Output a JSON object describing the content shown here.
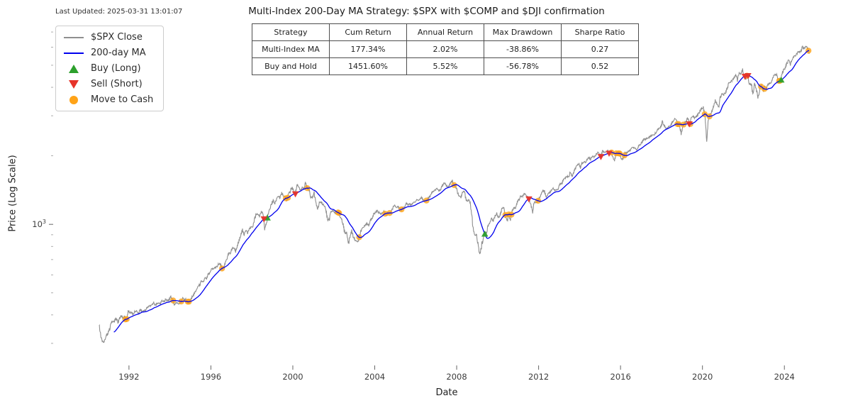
{
  "header": {
    "title": "Multi-Index 200-Day MA Strategy: $SPX with $COMP and $DJI confirmation",
    "last_updated": "Last Updated: 2025-03-31 13:01:07"
  },
  "legend": {
    "items": [
      {
        "label": "$SPX Close",
        "type": "line",
        "color": "#8f8f8f"
      },
      {
        "label": "200-day MA",
        "type": "line",
        "color": "#0000ee"
      },
      {
        "label": "Buy (Long)",
        "type": "triangle-up",
        "color": "#2ca02c"
      },
      {
        "label": "Sell (Short)",
        "type": "triangle-down",
        "color": "#e63329"
      },
      {
        "label": "Move to Cash",
        "type": "circle",
        "color": "#ffa317"
      }
    ]
  },
  "stats_table": {
    "headers": [
      "Strategy",
      "Cum Return",
      "Annual Return",
      "Max Drawdown",
      "Sharpe Ratio"
    ],
    "rows": [
      [
        "Multi-Index MA",
        "177.34%",
        "2.02%",
        "-38.86%",
        "0.27"
      ],
      [
        "Buy and Hold",
        "1451.60%",
        "5.52%",
        "-56.78%",
        "0.52"
      ]
    ]
  },
  "chart_data": {
    "type": "line",
    "title": "Multi-Index 200-Day MA Strategy: $SPX with $COMP and $DJI confirmation",
    "xlabel": "Date",
    "ylabel": "Price (Log Scale)",
    "y_scale": "log",
    "xlim": [
      1988.3,
      2026.9
    ],
    "ylim": [
      240,
      7800
    ],
    "x_ticks": [
      1992,
      1996,
      2000,
      2004,
      2008,
      2012,
      2016,
      2020,
      2024
    ],
    "y_ticks": [
      {
        "value": 1000,
        "base": "10",
        "exp": "3"
      }
    ],
    "y_minor_ticks": [
      300,
      400,
      500,
      600,
      700,
      800,
      900,
      2000,
      3000,
      4000,
      5000,
      6000,
      7000
    ],
    "legend_position": "upper left",
    "grid": false,
    "markers": {
      "buy": {
        "label": "Buy (Long)",
        "shape": "triangle-up",
        "color": "#2ca02c"
      },
      "sell": {
        "label": "Sell (Short)",
        "shape": "triangle-down",
        "color": "#e63329"
      },
      "cash": {
        "label": "Move to Cash",
        "shape": "circle",
        "color": "#ffa317"
      }
    },
    "x_start": 1990.5417,
    "x_step": 0.0833333,
    "series": [
      {
        "name": "$SPX Close",
        "color": "#8f8f8f",
        "y": [
          358,
          322,
          306,
          304,
          322,
          330,
          343,
          367,
          375,
          375,
          389,
          371,
          387,
          395,
          387,
          392,
          375,
          417,
          408,
          412,
          403,
          414,
          415,
          408,
          424,
          414,
          417,
          418,
          431,
          435,
          438,
          443,
          451,
          440,
          450,
          450,
          448,
          463,
          458,
          467,
          461,
          466,
          481,
          467,
          445,
          450,
          456,
          444,
          458,
          475,
          462,
          472,
          453,
          459,
          470,
          487,
          500,
          514,
          533,
          544,
          562,
          561,
          584,
          581,
          605,
          615,
          636,
          640,
          645,
          654,
          669,
          670,
          639,
          651,
          687,
          705,
          757,
          740,
          786,
          790,
          757,
          801,
          848,
          885,
          954,
          899,
          947,
          914,
          955,
          970,
          980,
          1049,
          1101,
          1111,
          1090,
          1133,
          1120,
          957,
          1017,
          1098,
          1163,
          1229,
          1279,
          1238,
          1286,
          1335,
          1301,
          1372,
          1328,
          1320,
          1282,
          1362,
          1388,
          1469,
          1394,
          1366,
          1498,
          1452,
          1420,
          1454,
          1430,
          1517,
          1436,
          1429,
          1314,
          1320,
          1366,
          1239,
          1160,
          1249,
          1255,
          1224,
          1211,
          1133,
          1040,
          1059,
          1139,
          1148,
          1130,
          1106,
          1147,
          1076,
          1067,
          989,
          911,
          916,
          815,
          885,
          936,
          879,
          855,
          841,
          848,
          916,
          963,
          974,
          990,
          1008,
          995,
          1050,
          1058,
          1111,
          1131,
          1144,
          1126,
          1107,
          1120,
          1140,
          1101,
          1104,
          1114,
          1130,
          1173,
          1211,
          1181,
          1203,
          1180,
          1156,
          1191,
          1191,
          1234,
          1220,
          1228,
          1207,
          1249,
          1248,
          1280,
          1280,
          1294,
          1310,
          1270,
          1270,
          1276,
          1303,
          1335,
          1377,
          1400,
          1418,
          1438,
          1406,
          1420,
          1482,
          1530,
          1503,
          1455,
          1473,
          1526,
          1549,
          1481,
          1468,
          1378,
          1330,
          1322,
          1385,
          1400,
          1280,
          1267,
          1282,
          1166,
          968,
          896,
          903,
          825,
          735,
          797,
          872,
          919,
          919,
          987,
          1020,
          1057,
          1036,
          1095,
          1115,
          1073,
          1104,
          1169,
          1186,
          1089,
          1030,
          1101,
          1049,
          1141,
          1183,
          1180,
          1257,
          1286,
          1327,
          1325,
          1363,
          1345,
          1320,
          1292,
          1218,
          1131,
          1253,
          1246,
          1257,
          1312,
          1365,
          1408,
          1397,
          1310,
          1362,
          1379,
          1406,
          1440,
          1412,
          1416,
          1426,
          1498,
          1514,
          1569,
          1597,
          1630,
          1606,
          1685,
          1632,
          1681,
          1756,
          1805,
          1848,
          1782,
          1859,
          1872,
          1883,
          1923,
          1960,
          1930,
          2003,
          1972,
          2018,
          2067,
          2058,
          1994,
          2104,
          2067,
          2085,
          2107,
          2063,
          2103,
          1972,
          1920,
          2079,
          2080,
          2043,
          1940,
          1932,
          2059,
          2065,
          2096,
          2098,
          2173,
          2170,
          2168,
          2126,
          2198,
          2238,
          2278,
          2363,
          2362,
          2384,
          2411,
          2423,
          2470,
          2471,
          2519,
          2575,
          2647,
          2673,
          2823,
          2713,
          2640,
          2648,
          2705,
          2718,
          2816,
          2901,
          2913,
          2711,
          2760,
          2506,
          2704,
          2784,
          2834,
          2945,
          2752,
          2941,
          2980,
          2926,
          2976,
          3037,
          3140,
          3230,
          3225,
          2954,
          2340,
          2912,
          3044,
          3100,
          3271,
          3500,
          3363,
          3269,
          3621,
          3756,
          3714,
          3811,
          3972,
          4181,
          4204,
          4297,
          4395,
          4522,
          4307,
          4605,
          4567,
          4766,
          4515,
          4373,
          4530,
          4131,
          4132,
          3785,
          4130,
          3955,
          3585,
          3871,
          4080,
          3839,
          4076,
          3970,
          4109,
          4169,
          4179,
          4450,
          4588,
          4507,
          4288,
          4193,
          4567,
          4769,
          4845,
          5096,
          5254,
          5035,
          5277,
          5460,
          5522,
          5648,
          5762,
          5705,
          6032,
          5881,
          6040,
          5954,
          5612
        ]
      },
      {
        "name": "200-day MA",
        "color": "#0000ee",
        "derived": "trailing-moving-average-of-SPX-Close",
        "window_days": 200
      }
    ]
  }
}
